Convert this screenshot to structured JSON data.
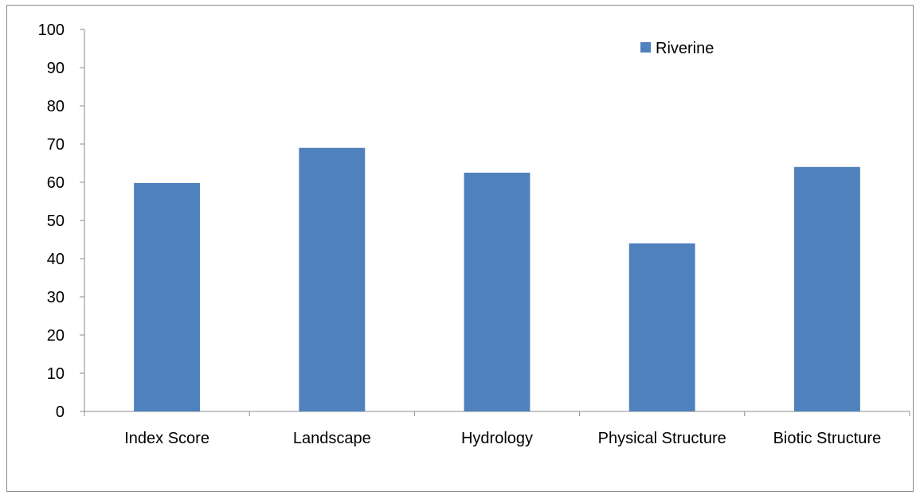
{
  "chart_data": {
    "type": "bar",
    "title": "",
    "xlabel": "",
    "ylabel": "",
    "categories": [
      "Index Score",
      "Landscape",
      "Hydrology",
      "Physical Structure",
      "Biotic Structure"
    ],
    "series": [
      {
        "name": "Riverine",
        "values": [
          59.8,
          69,
          62.5,
          44,
          64
        ],
        "color": "#4F81BD"
      }
    ],
    "ylim": [
      0,
      100
    ],
    "yticks": [
      0,
      10,
      20,
      30,
      40,
      50,
      60,
      70,
      80,
      90,
      100
    ],
    "grid": false,
    "legend_position": "top-right",
    "axis_color": "#8c8c8c"
  }
}
